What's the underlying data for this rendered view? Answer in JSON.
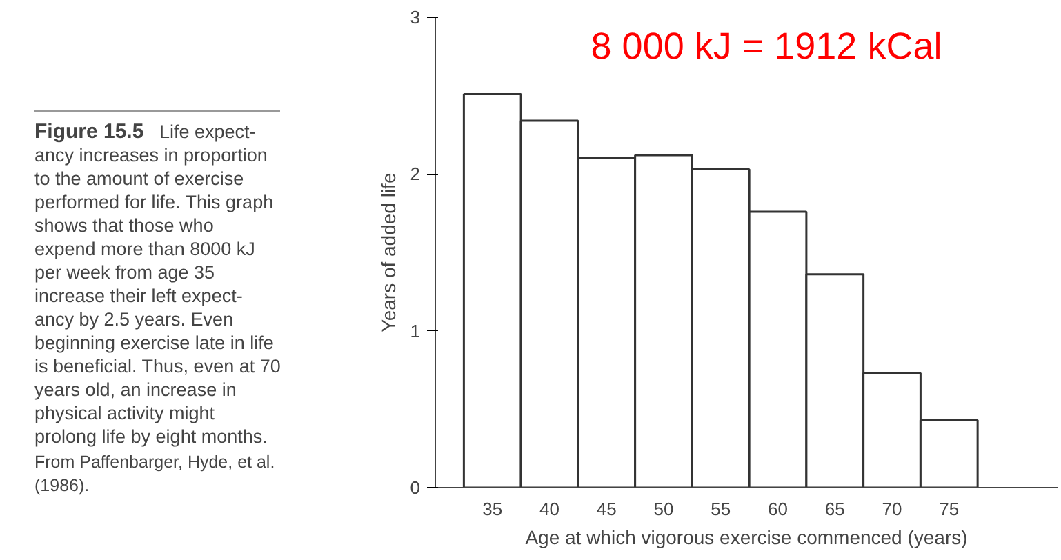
{
  "chart_data": {
    "type": "bar",
    "xlabel": "Age at which vigorous exercise commenced (years)",
    "ylabel": "Years of added life",
    "categories": [
      "35",
      "40",
      "45",
      "50",
      "55",
      "60",
      "65",
      "70",
      "75"
    ],
    "values": [
      2.51,
      2.34,
      2.1,
      2.12,
      2.03,
      1.76,
      1.36,
      0.73,
      0.43
    ],
    "color": "#ffffff",
    "ylim": [
      0,
      3
    ],
    "yticks": [
      0,
      1,
      2,
      3
    ],
    "grid": false,
    "annotations": [
      "Figure 15.5",
      "Life expect-\nancy increases in proportion\nto the amount of exercise\nperformed for life. This graph\nshows that those who\nexpend more than 8000 kJ\nper week from age 35\nincrease their left expect-\nancy by 2.5 years. Even\nbeginning exercise late in life\nis beneficial. Thus, even at 70\nyears old, an increase in\nphysical activity might\nprolong life by eight months.",
      "From Paffenbarger, Hyde, et al.\n(1986).",
      "8 000 kJ = 1912 kCal"
    ]
  }
}
